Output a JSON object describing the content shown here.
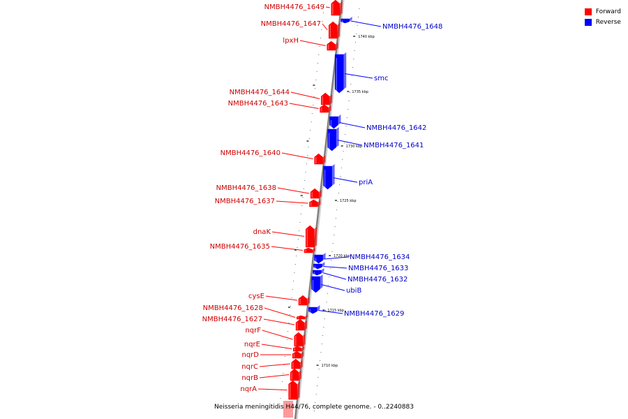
{
  "legend": {
    "forward_label": "Forward",
    "reverse_label": "Reverse",
    "forward_color": "#ff0000",
    "reverse_color": "#0000ff"
  },
  "caption": "Neisseria meningitidis H44/76, complete genome. - 0..2240883",
  "axis": {
    "ticks": [
      "1740 kbp",
      "1735 kbp",
      "1730 kbp",
      "1725 kbp",
      "1720 kbp",
      "1715 kbp",
      "1710 kbp"
    ]
  },
  "genes": [
    {
      "name": "NMBH4476_1649",
      "strand": "forward"
    },
    {
      "name": "NMBH4476_1648",
      "strand": "reverse"
    },
    {
      "name": "NMBH4476_1647",
      "strand": "forward"
    },
    {
      "name": "lpxH",
      "strand": "forward"
    },
    {
      "name": "smc",
      "strand": "reverse"
    },
    {
      "name": "NMBH4476_1644",
      "strand": "forward"
    },
    {
      "name": "NMBH4476_1643",
      "strand": "forward"
    },
    {
      "name": "NMBH4476_1642",
      "strand": "reverse"
    },
    {
      "name": "NMBH4476_1641",
      "strand": "reverse"
    },
    {
      "name": "NMBH4476_1640",
      "strand": "forward"
    },
    {
      "name": "priA",
      "strand": "reverse"
    },
    {
      "name": "NMBH4476_1638",
      "strand": "forward"
    },
    {
      "name": "NMBH4476_1637",
      "strand": "forward"
    },
    {
      "name": "dnaK",
      "strand": "forward"
    },
    {
      "name": "NMBH4476_1635",
      "strand": "forward"
    },
    {
      "name": "NMBH4476_1634",
      "strand": "reverse"
    },
    {
      "name": "NMBH4476_1633",
      "strand": "reverse"
    },
    {
      "name": "NMBH4476_1632",
      "strand": "reverse"
    },
    {
      "name": "ubiB",
      "strand": "reverse"
    },
    {
      "name": "cysE",
      "strand": "forward"
    },
    {
      "name": "NMBH4476_1628",
      "strand": "forward"
    },
    {
      "name": "NMBH4476_1629",
      "strand": "reverse"
    },
    {
      "name": "NMBH4476_1627",
      "strand": "forward"
    },
    {
      "name": "nqrF",
      "strand": "forward"
    },
    {
      "name": "nqrE",
      "strand": "forward"
    },
    {
      "name": "nqrD",
      "strand": "forward"
    },
    {
      "name": "nqrC",
      "strand": "forward"
    },
    {
      "name": "nqrB",
      "strand": "forward"
    },
    {
      "name": "nqrA",
      "strand": "forward"
    }
  ]
}
